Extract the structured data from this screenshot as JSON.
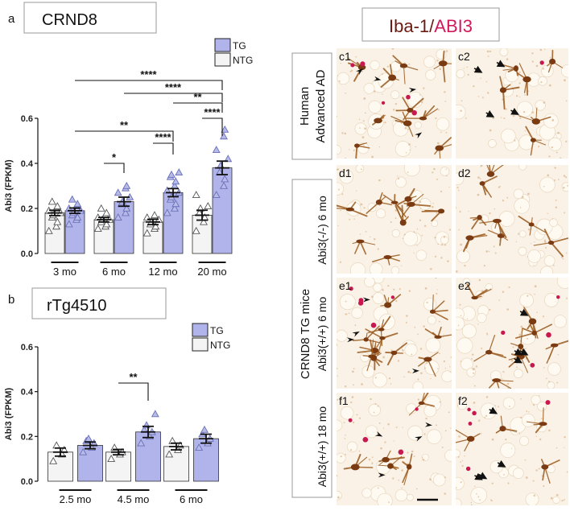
{
  "panel_a": {
    "letter": "a",
    "title": "CRND8",
    "legend": [
      {
        "label": "TG",
        "color": "#b0b4ea"
      },
      {
        "label": "NTG",
        "color": "#f4f4f4"
      }
    ]
  },
  "panel_b": {
    "letter": "b",
    "title": "rTg4510",
    "legend": [
      {
        "label": "TG",
        "color": "#b0b4ea"
      },
      {
        "label": "NTG",
        "color": "#f4f4f4"
      }
    ]
  },
  "chart_data": [
    {
      "type": "bar",
      "panel": "a",
      "title": "CRND8",
      "ylabel": "Abi3 (FPKM)",
      "ylim": [
        0,
        0.6
      ],
      "yticks": [
        "0.0",
        "0.2",
        "0.4",
        "0.6"
      ],
      "groups": [
        "3 mo",
        "6 mo",
        "12 mo",
        "20 mo"
      ],
      "series": [
        {
          "name": "NTG",
          "values": [
            0.18,
            0.15,
            0.14,
            0.17
          ]
        },
        {
          "name": "TG",
          "values": [
            0.19,
            0.23,
            0.27,
            0.38
          ]
        }
      ],
      "errors": {
        "NTG": [
          0.012,
          0.01,
          0.012,
          0.022
        ],
        "TG": [
          0.012,
          0.02,
          0.018,
          0.03
        ]
      },
      "points": {
        "NTG": [
          [
            0.1,
            0.12,
            0.14,
            0.16,
            0.17,
            0.18,
            0.19,
            0.2,
            0.21,
            0.23
          ],
          [
            0.11,
            0.12,
            0.13,
            0.14,
            0.15,
            0.15,
            0.16,
            0.17,
            0.18,
            0.2
          ],
          [
            0.09,
            0.11,
            0.12,
            0.13,
            0.14,
            0.15,
            0.16,
            0.17
          ],
          [
            0.1,
            0.14,
            0.16,
            0.18,
            0.2,
            0.21,
            0.26
          ]
        ],
        "TG": [
          [
            0.13,
            0.15,
            0.16,
            0.17,
            0.18,
            0.19,
            0.2,
            0.21,
            0.22,
            0.24
          ],
          [
            0.16,
            0.18,
            0.2,
            0.22,
            0.23,
            0.25,
            0.27,
            0.29,
            0.3
          ],
          [
            0.18,
            0.2,
            0.22,
            0.24,
            0.25,
            0.27,
            0.28,
            0.3,
            0.32,
            0.34,
            0.35,
            0.36
          ],
          [
            0.26,
            0.3,
            0.33,
            0.36,
            0.39,
            0.42,
            0.46,
            0.52,
            0.55
          ]
        ]
      },
      "significance": [
        {
          "label": "*",
          "from": "6 mo NTG",
          "to": "6 mo TG"
        },
        {
          "label": "****",
          "from": "12 mo NTG",
          "to": "12 mo TG"
        },
        {
          "label": "****",
          "from": "20 mo NTG",
          "to": "20 mo TG"
        },
        {
          "label": "**",
          "from": "3 mo TG",
          "to": "12 mo TG"
        },
        {
          "label": "**",
          "from": "12 mo TG",
          "to": "20 mo TG"
        },
        {
          "label": "****",
          "from": "6 mo TG",
          "to": "20 mo TG"
        },
        {
          "label": "****",
          "from": "3 mo TG",
          "to": "20 mo TG"
        }
      ]
    },
    {
      "type": "bar",
      "panel": "b",
      "title": "rTg4510",
      "ylabel": "Abi3 (FPKM)",
      "ylim": [
        0,
        0.6
      ],
      "yticks": [
        "0.0",
        "0.2",
        "0.4",
        "0.6"
      ],
      "groups": [
        "2.5 mo",
        "4.5 mo",
        "6 mo"
      ],
      "series": [
        {
          "name": "NTG",
          "values": [
            0.13,
            0.13,
            0.155
          ]
        },
        {
          "name": "TG",
          "values": [
            0.16,
            0.22,
            0.19
          ]
        }
      ],
      "errors": {
        "NTG": [
          0.018,
          0.012,
          0.015
        ],
        "TG": [
          0.015,
          0.025,
          0.02
        ]
      },
      "points": {
        "NTG": [
          [
            0.09,
            0.12,
            0.14,
            0.16
          ],
          [
            0.1,
            0.12,
            0.13,
            0.15
          ],
          [
            0.12,
            0.14,
            0.16,
            0.18
          ]
        ],
        "TG": [
          [
            0.13,
            0.15,
            0.17,
            0.18,
            0.19
          ],
          [
            0.17,
            0.2,
            0.22,
            0.23,
            0.25,
            0.3
          ],
          [
            0.15,
            0.17,
            0.19,
            0.21,
            0.23
          ]
        ]
      },
      "significance": [
        {
          "label": "**",
          "from": "4.5 mo NTG",
          "to": "4.5 mo TG"
        }
      ]
    }
  ],
  "panel_c": {
    "title_part1": "Iba-1",
    "title_sep": "/",
    "title_part2": "ABI3",
    "color_part1": "#6b1a10",
    "color_part2": "#d2195a",
    "row_label_human_1": "Human",
    "row_label_human_2": "Advanced AD",
    "row_label_mice": "CRND8 TG mice",
    "row_label_d": "Abi3(-/-) 6 mo",
    "row_label_e": "Abi3(+/+) 6 mo",
    "row_label_f": "Abi3(+/+) 18 mo",
    "panels": [
      "c1",
      "c2",
      "d1",
      "d2",
      "e1",
      "e2",
      "f1",
      "f2"
    ]
  }
}
